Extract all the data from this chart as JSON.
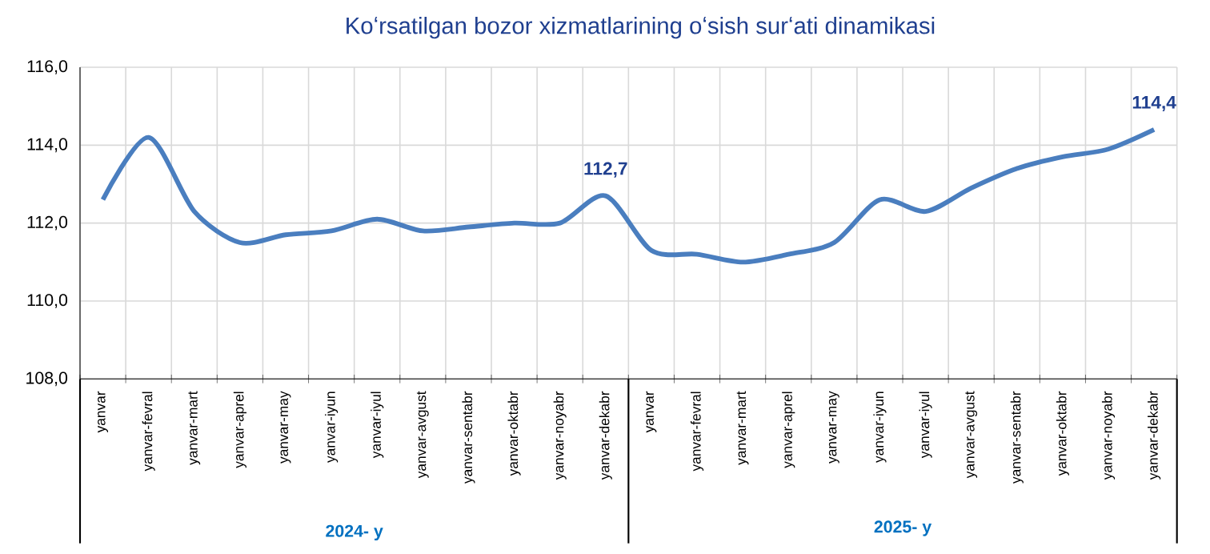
{
  "chart_data": {
    "type": "line",
    "title": "Koʻrsatilgan bozor xizmatlarining oʻsish surʻati dinamikasi",
    "categories": [
      "yanvar",
      "yanvar-fevral",
      "yanvar-mart",
      "yanvar-aprel",
      "yanvar-may",
      "yanvar-iyun",
      "yanvar-iyul",
      "yanvar-avgust",
      "yanvar-sentabr",
      "yanvar-oktabr",
      "yanvar-noyabr",
      "yanvar-dekabr",
      "yanvar",
      "yanvar-fevral",
      "yanvar-mart",
      "yanvar-aprel",
      "yanvar-may",
      "yanvar-iyun",
      "yanvar-iyul",
      "yanvar-avgust",
      "yanvar-sentabr",
      "yanvar-oktabr",
      "yanvar-noyabr",
      "yanvar-dekabr"
    ],
    "values": [
      112.6,
      114.2,
      112.3,
      111.5,
      111.7,
      111.8,
      112.1,
      111.8,
      111.9,
      112.0,
      112.0,
      112.7,
      111.3,
      111.2,
      111.0,
      111.2,
      111.5,
      112.6,
      112.3,
      112.9,
      113.4,
      113.7,
      113.9,
      114.4
    ],
    "value_labels": [
      null,
      null,
      null,
      null,
      null,
      null,
      null,
      null,
      null,
      null,
      null,
      "112,7",
      null,
      null,
      null,
      null,
      null,
      null,
      null,
      null,
      null,
      null,
      null,
      "114,4"
    ],
    "color": "#4a7ebf",
    "marker": "none",
    "line_style": "solid",
    "grid": true,
    "ylim": [
      108,
      116
    ],
    "yticks": [
      {
        "value": 108,
        "label": "108,0"
      },
      {
        "value": 110,
        "label": "110,0"
      },
      {
        "value": 112,
        "label": "112,0"
      },
      {
        "value": 114,
        "label": "114,0"
      },
      {
        "value": 116,
        "label": "116,0"
      }
    ],
    "annotations": [
      "2024- y",
      "2025- y"
    ]
  }
}
